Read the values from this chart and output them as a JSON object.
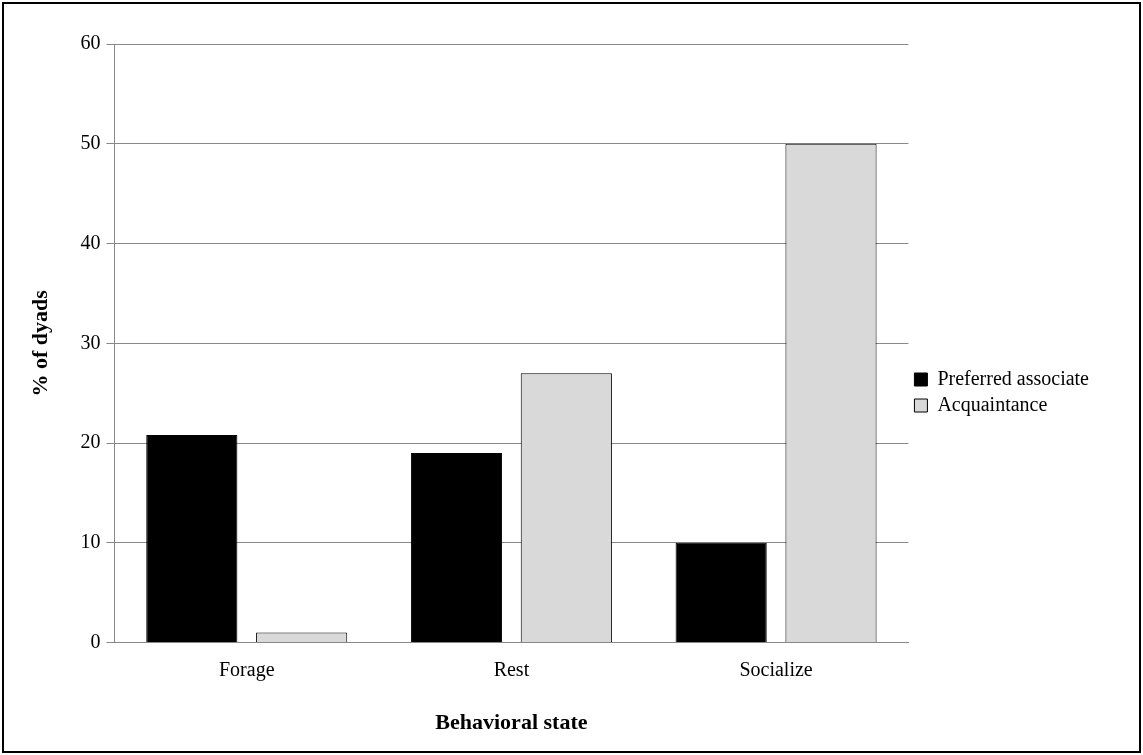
{
  "chart_data": {
    "type": "bar",
    "xlabel": "Behavioral state",
    "ylabel": "% of dyads",
    "categories": [
      "Forage",
      "Rest",
      "Socialize"
    ],
    "series": [
      {
        "name": "Preferred associate",
        "color": "#000000",
        "values": [
          20.8,
          19,
          10
        ]
      },
      {
        "name": "Acquaintance",
        "color": "#d9d9d9",
        "values": [
          1,
          27,
          50
        ]
      }
    ],
    "ylim": [
      0,
      60
    ],
    "yticks": [
      0,
      10,
      20,
      30,
      40,
      50,
      60
    ],
    "grid": "y",
    "legend": "right"
  }
}
